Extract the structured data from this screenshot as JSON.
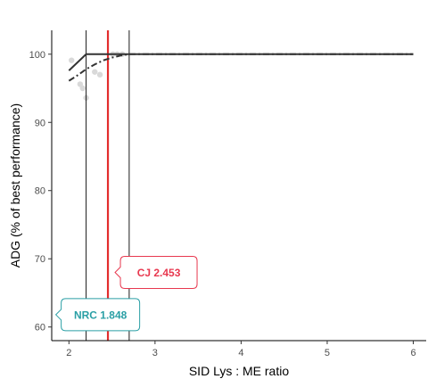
{
  "chart_data": {
    "type": "scatter",
    "title": "",
    "xlabel": "SID Lys : ME ratio",
    "ylabel": "ADG (% of best performance)",
    "xlim": [
      1.8,
      6.15
    ],
    "ylim": [
      58,
      103.5
    ],
    "xticks": [
      2,
      3,
      4,
      5,
      6
    ],
    "yticks": [
      60,
      70,
      80,
      90,
      100
    ],
    "xtick_labels": [
      "2",
      "3",
      "4",
      "5",
      "6"
    ],
    "ytick_labels": [
      "60",
      "70",
      "80",
      "90",
      "100"
    ],
    "grid": false,
    "legend": "none",
    "points": [
      {
        "x": 2.03,
        "y": 99.1
      },
      {
        "x": 2.13,
        "y": 95.6
      },
      {
        "x": 2.16,
        "y": 95.0
      },
      {
        "x": 2.2,
        "y": 93.6
      },
      {
        "x": 2.3,
        "y": 97.4
      },
      {
        "x": 2.36,
        "y": 97.0
      },
      {
        "x": 2.51,
        "y": 100.0
      },
      {
        "x": 2.56,
        "y": 100.0
      },
      {
        "x": 2.62,
        "y": 100.0
      }
    ],
    "series": [
      {
        "style": "solid",
        "x": [
          2.0,
          2.2,
          6.0
        ],
        "y": [
          97.6,
          100.0,
          100.0
        ]
      },
      {
        "style": "dashdot",
        "x": [
          2.0,
          2.1,
          2.2,
          2.3,
          2.4,
          2.5,
          2.6,
          2.7,
          6.0
        ],
        "y": [
          96.1,
          96.9,
          97.8,
          98.5,
          99.1,
          99.5,
          99.8,
          100.0,
          100.0
        ]
      }
    ],
    "vlines": [
      {
        "x": 2.2,
        "color": "#000000",
        "style": "thin"
      },
      {
        "x": 2.453,
        "color": "#e32d2d",
        "style": "thick"
      },
      {
        "x": 2.7,
        "color": "#000000",
        "style": "thin"
      }
    ],
    "annotations": [
      {
        "id": "cj",
        "text": "CJ  2.453",
        "x": 2.453,
        "y": 68,
        "color": "#e8384f"
      },
      {
        "id": "nrc",
        "text": "NRC 1.848",
        "x": 1.848,
        "y": 61.8,
        "color": "#2a9fa5"
      }
    ],
    "colors": {
      "points": "#d9d9d9",
      "lines": "#333333",
      "axis": "#000000"
    }
  }
}
